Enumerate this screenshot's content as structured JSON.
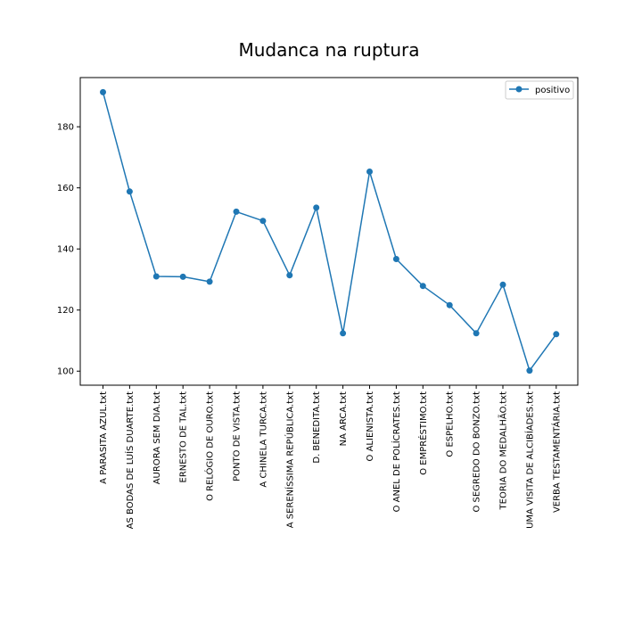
{
  "chart_data": {
    "type": "line",
    "title": "Mudanca na ruptura",
    "xlabel": "",
    "ylabel": "",
    "categories": [
      "A PARASITA AZUL.txt",
      "AS BODAS DE LUÍS DUARTE.txt",
      "AURORA SEM DIA.txt",
      "ERNESTO DE TAL.txt",
      "O RELÓGIO DE OURO.txt",
      "PONTO DE VISTA.txt",
      "A CHINELA TURCA.txt",
      "A SERENÍSSIMA REPÚBLICA.txt",
      "D. BENEDITA.txt",
      "NA ARCA.txt",
      "O ALIENISTA.txt",
      "O ANEL DE POLÍCRATES.txt",
      "O EMPRÉSTIMO.txt",
      "O ESPELHO.txt",
      "O SEGREDO DO BONZO.txt",
      "TEORIA DO MEDALHÃO.txt",
      "UMA VISITA DE ALCIBÍADES.txt",
      "VERBA TESTAMENTÁRIA.txt"
    ],
    "series": [
      {
        "name": "positivo",
        "color": "#1f77b4",
        "marker": "circle",
        "values": [
          191.3,
          158.8,
          131.0,
          130.9,
          129.3,
          152.2,
          149.2,
          131.4,
          153.5,
          112.4,
          165.3,
          136.7,
          127.9,
          121.6,
          112.4,
          128.3,
          100.2,
          112.1
        ]
      }
    ],
    "yticks": [
      100,
      120,
      140,
      160,
      180
    ],
    "ylim": [
      95.4,
      196.1
    ],
    "grid": false,
    "legend_position": "upper right"
  }
}
